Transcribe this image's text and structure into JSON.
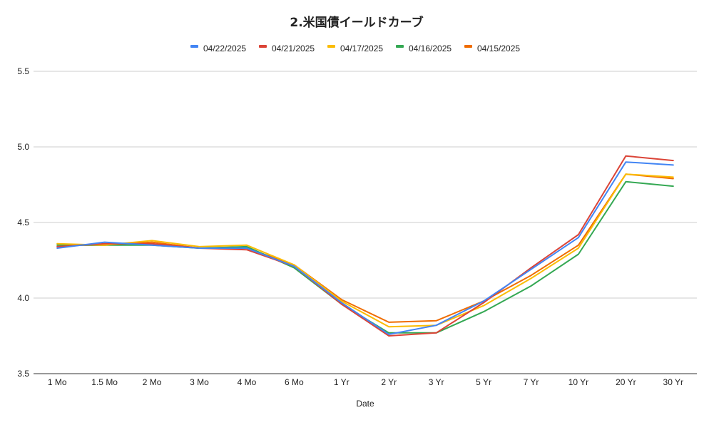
{
  "chart_data": {
    "type": "line",
    "title": "2.米国債イールドカーブ",
    "xlabel": "Date",
    "ylabel": "",
    "ylim": [
      3.5,
      5.5
    ],
    "yticks": [
      "3.5",
      "4.0",
      "4.5",
      "5.0",
      "5.5"
    ],
    "grid": true,
    "legend_position": "top",
    "categories": [
      "1 Mo",
      "1.5 Mo",
      "2 Mo",
      "3 Mo",
      "4 Mo",
      "6 Mo",
      "1 Yr",
      "2 Yr",
      "3 Yr",
      "5 Yr",
      "7 Yr",
      "10 Yr",
      "20 Yr",
      "30 Yr"
    ],
    "series": [
      {
        "name": "04/15/2025",
        "color": "#ef6c00",
        "values": [
          4.35,
          4.35,
          4.37,
          4.33,
          4.33,
          4.22,
          3.99,
          3.84,
          3.85,
          3.98,
          4.15,
          4.35,
          4.82,
          4.79
        ]
      },
      {
        "name": "04/16/2025",
        "color": "#34a853",
        "values": [
          4.35,
          4.35,
          4.35,
          4.33,
          4.34,
          4.2,
          3.96,
          3.77,
          3.77,
          3.91,
          4.08,
          4.29,
          4.77,
          4.74
        ]
      },
      {
        "name": "04/17/2025",
        "color": "#fbbc04",
        "values": [
          4.36,
          4.35,
          4.38,
          4.34,
          4.35,
          4.22,
          3.98,
          3.81,
          3.82,
          3.95,
          4.13,
          4.33,
          4.82,
          4.8
        ]
      },
      {
        "name": "04/21/2025",
        "color": "#db4437",
        "values": [
          4.34,
          4.36,
          4.36,
          4.33,
          4.32,
          4.21,
          3.96,
          3.75,
          3.77,
          3.97,
          4.2,
          4.42,
          4.94,
          4.91
        ]
      },
      {
        "name": "04/22/2025",
        "color": "#4285f4",
        "values": [
          4.33,
          4.37,
          4.35,
          4.33,
          4.33,
          4.21,
          3.97,
          3.76,
          3.82,
          3.98,
          4.19,
          4.4,
          4.9,
          4.88
        ]
      }
    ],
    "legend_order": [
      "04/22/2025",
      "04/21/2025",
      "04/17/2025",
      "04/16/2025",
      "04/15/2025"
    ]
  }
}
